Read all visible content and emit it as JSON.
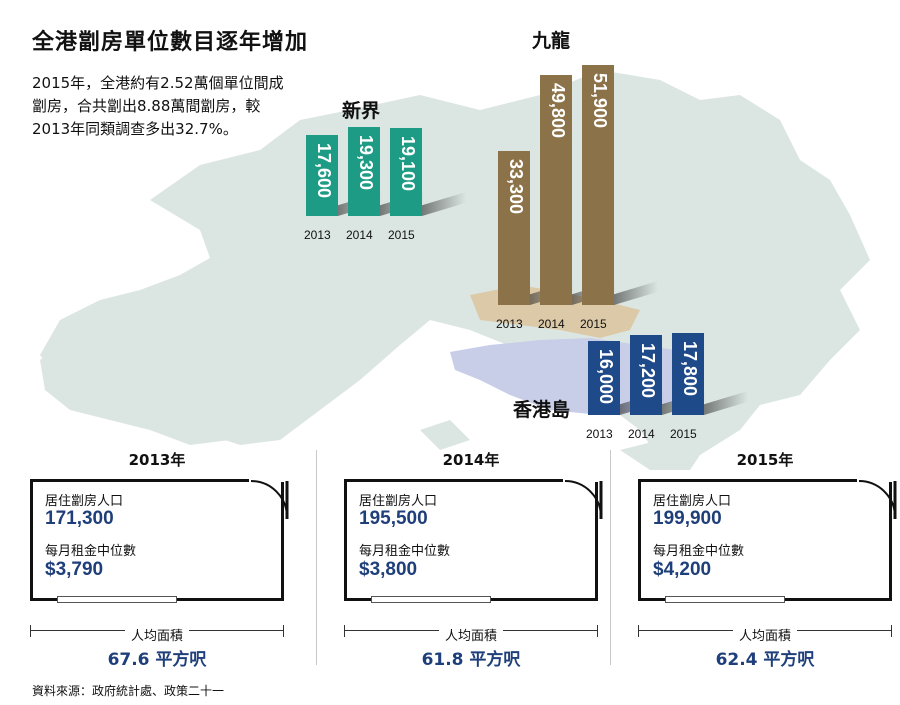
{
  "title": "全港劏房單位數目逐年增加",
  "intro": "2015年，全港約有2.52萬個單位間成劏房，合共劏出8.88萬間劏房，較2013年同類調查多出32.7%。",
  "source": "資料來源：政府統計處、政策二十一",
  "chart_data": {
    "type": "bar",
    "categories": [
      "2013",
      "2014",
      "2015"
    ],
    "series": [
      {
        "name": "新界",
        "values": [
          17600,
          19300,
          19100
        ],
        "labels": [
          "17,600",
          "19,300",
          "19,100"
        ],
        "color": "#1e9b84"
      },
      {
        "name": "九龍",
        "values": [
          33300,
          49800,
          51900
        ],
        "labels": [
          "33,300",
          "49,800",
          "51,900"
        ],
        "color": "#8c7248"
      },
      {
        "name": "香港島",
        "values": [
          16000,
          17200,
          17800
        ],
        "labels": [
          "16,000",
          "17,200",
          "17,800"
        ],
        "color": "#1f4a8a"
      }
    ]
  },
  "panels": [
    {
      "year": "2013年",
      "pop_label": "居住劏房人口",
      "pop": "171,300",
      "rent_label": "每月租金中位數",
      "rent": "$3,790",
      "area_label": "人均面積",
      "area": "67.6 平方呎"
    },
    {
      "year": "2014年",
      "pop_label": "居住劏房人口",
      "pop": "195,500",
      "rent_label": "每月租金中位數",
      "rent": "$3,800",
      "area_label": "人均面積",
      "area": "61.8 平方呎"
    },
    {
      "year": "2015年",
      "pop_label": "居住劏房人口",
      "pop": "199,900",
      "rent_label": "每月租金中位數",
      "rent": "$4,200",
      "area_label": "人均面積",
      "area": "62.4 平方呎"
    }
  ]
}
